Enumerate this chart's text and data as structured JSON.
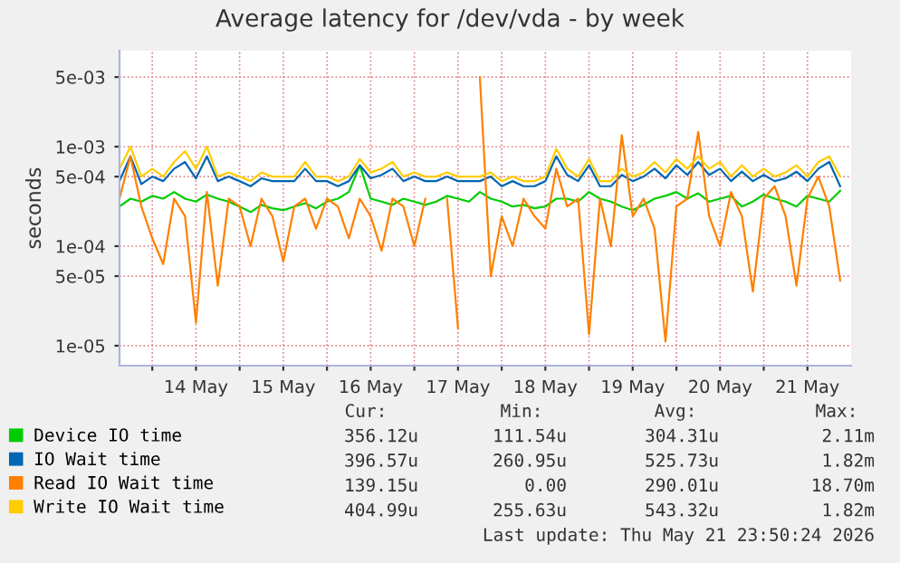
{
  "chart_data": {
    "type": "line",
    "title": "Average latency for /dev/vda - by week",
    "ylabel": "seconds",
    "log": "y",
    "grid": true,
    "legend": "bottom left",
    "marker": "none",
    "line_style": "solid",
    "ylim": [
      6.3e-06,
      0.0092
    ],
    "yticks": [
      {
        "value": 0.005,
        "label": "5e-03"
      },
      {
        "value": 0.001,
        "label": "1e-03"
      },
      {
        "value": 0.0005,
        "label": "5e-04"
      },
      {
        "value": 0.0001,
        "label": "1e-04"
      },
      {
        "value": 5e-05,
        "label": "5e-05"
      },
      {
        "value": 1e-05,
        "label": "1e-05"
      }
    ],
    "xlim": [
      "2026-05-13T15:00",
      "2026-05-22T00:00"
    ],
    "xticks": [
      {
        "value": "2026-05-14T00:00",
        "label": null
      },
      {
        "value": "2026-05-14T12:00",
        "label": "14 May"
      },
      {
        "value": "2026-05-15T00:00",
        "label": null
      },
      {
        "value": "2026-05-15T12:00",
        "label": "15 May"
      },
      {
        "value": "2026-05-16T00:00",
        "label": null
      },
      {
        "value": "2026-05-16T12:00",
        "label": "16 May"
      },
      {
        "value": "2026-05-17T00:00",
        "label": null
      },
      {
        "value": "2026-05-17T12:00",
        "label": "17 May"
      },
      {
        "value": "2026-05-18T00:00",
        "label": null
      },
      {
        "value": "2026-05-18T12:00",
        "label": "18 May"
      },
      {
        "value": "2026-05-19T00:00",
        "label": null
      },
      {
        "value": "2026-05-19T12:00",
        "label": "19 May"
      },
      {
        "value": "2026-05-20T00:00",
        "label": null
      },
      {
        "value": "2026-05-20T12:00",
        "label": "20 May"
      },
      {
        "value": "2026-05-21T00:00",
        "label": null
      },
      {
        "value": "2026-05-21T12:00",
        "label": "21 May"
      }
    ],
    "x": [
      "2026-05-13T15:00",
      "2026-05-13T18:00",
      "2026-05-13T21:00",
      "2026-05-14T00:00",
      "2026-05-14T03:00",
      "2026-05-14T06:00",
      "2026-05-14T09:00",
      "2026-05-14T12:00",
      "2026-05-14T15:00",
      "2026-05-14T18:00",
      "2026-05-14T21:00",
      "2026-05-15T00:00",
      "2026-05-15T03:00",
      "2026-05-15T06:00",
      "2026-05-15T09:00",
      "2026-05-15T12:00",
      "2026-05-15T15:00",
      "2026-05-15T18:00",
      "2026-05-15T21:00",
      "2026-05-16T00:00",
      "2026-05-16T03:00",
      "2026-05-16T06:00",
      "2026-05-16T09:00",
      "2026-05-16T12:00",
      "2026-05-16T15:00",
      "2026-05-16T18:00",
      "2026-05-16T21:00",
      "2026-05-17T00:00",
      "2026-05-17T03:00",
      "2026-05-17T06:00",
      "2026-05-17T09:00",
      "2026-05-17T12:00",
      "2026-05-17T15:00",
      "2026-05-17T18:00",
      "2026-05-17T21:00",
      "2026-05-18T00:00",
      "2026-05-18T03:00",
      "2026-05-18T06:00",
      "2026-05-18T09:00",
      "2026-05-18T12:00",
      "2026-05-18T15:00",
      "2026-05-18T18:00",
      "2026-05-18T21:00",
      "2026-05-19T00:00",
      "2026-05-19T03:00",
      "2026-05-19T06:00",
      "2026-05-19T09:00",
      "2026-05-19T12:00",
      "2026-05-19T15:00",
      "2026-05-19T18:00",
      "2026-05-19T21:00",
      "2026-05-20T00:00",
      "2026-05-20T03:00",
      "2026-05-20T06:00",
      "2026-05-20T09:00",
      "2026-05-20T12:00",
      "2026-05-20T15:00",
      "2026-05-20T18:00",
      "2026-05-20T21:00",
      "2026-05-21T00:00",
      "2026-05-21T03:00",
      "2026-05-21T06:00",
      "2026-05-21T09:00",
      "2026-05-21T12:00",
      "2026-05-21T15:00",
      "2026-05-21T18:00",
      "2026-05-21T21:00"
    ],
    "series": [
      {
        "name": "Device IO time",
        "color": "#00cc00",
        "values": [
          0.00025,
          0.0003,
          0.00028,
          0.00032,
          0.0003,
          0.00035,
          0.0003,
          0.00028,
          0.00033,
          0.0003,
          0.00028,
          0.00025,
          0.00022,
          0.00026,
          0.00024,
          0.00023,
          0.00025,
          0.00027,
          0.00024,
          0.00028,
          0.0003,
          0.00035,
          0.00065,
          0.0003,
          0.00028,
          0.00026,
          0.0003,
          0.00028,
          0.00026,
          0.00028,
          0.00032,
          0.0003,
          0.00028,
          0.00035,
          0.0003,
          0.00028,
          0.00025,
          0.00026,
          0.00024,
          0.00025,
          0.0003,
          0.0003,
          0.00028,
          0.00035,
          0.0003,
          0.00028,
          0.00025,
          0.00023,
          0.00026,
          0.0003,
          0.00032,
          0.00035,
          0.0003,
          0.00034,
          0.00028,
          0.0003,
          0.00032,
          0.00025,
          0.00028,
          0.00033,
          0.0003,
          0.00028,
          0.00025,
          0.00032,
          0.0003,
          0.00028,
          0.00036
        ]
      },
      {
        "name": "IO Wait time",
        "color": "#0066b3",
        "values": [
          0.00045,
          0.0008,
          0.00042,
          0.0005,
          0.00045,
          0.0006,
          0.0007,
          0.00048,
          0.0008,
          0.00045,
          0.0005,
          0.00045,
          0.0004,
          0.00048,
          0.00045,
          0.00045,
          0.00045,
          0.0006,
          0.00045,
          0.00045,
          0.0004,
          0.00045,
          0.00065,
          0.00048,
          0.00052,
          0.0006,
          0.00045,
          0.0005,
          0.00045,
          0.00045,
          0.0005,
          0.00045,
          0.00045,
          0.00045,
          0.0005,
          0.0004,
          0.00045,
          0.0004,
          0.0004,
          0.00045,
          0.0008,
          0.00052,
          0.00045,
          0.00065,
          0.0004,
          0.0004,
          0.00052,
          0.00045,
          0.0005,
          0.0006,
          0.00048,
          0.00065,
          0.00052,
          0.0007,
          0.00052,
          0.0006,
          0.00045,
          0.00056,
          0.00045,
          0.00052,
          0.00045,
          0.00048,
          0.00056,
          0.00045,
          0.0006,
          0.0007,
          0.0004
        ]
      },
      {
        "name": "Read IO Wait time",
        "color": "#ff8000",
        "values": [
          0.0003,
          0.0008,
          0.00025,
          0.00012,
          6.6e-05,
          0.0003,
          0.0002,
          1.7e-05,
          0.00035,
          4e-05,
          0.0003,
          0.00025,
          0.0001,
          0.0003,
          0.0002,
          7e-05,
          0.00025,
          0.0003,
          0.00015,
          0.0003,
          0.00025,
          0.00012,
          0.0003,
          0.0002,
          9e-05,
          0.0003,
          0.00025,
          0.0001,
          0.0003,
          null,
          0.0003,
          1.5e-05,
          null,
          0.005,
          5e-05,
          0.0002,
          0.0001,
          0.0003,
          0.0002,
          0.00015,
          0.0006,
          0.00025,
          0.0003,
          1.3e-05,
          0.0003,
          0.0001,
          0.0013,
          0.0002,
          0.0003,
          0.00015,
          1.1e-05,
          0.00025,
          0.0003,
          0.0014,
          0.0002,
          0.0001,
          0.00035,
          0.0002,
          3.5e-05,
          0.0003,
          0.0004,
          0.0002,
          4e-05,
          0.0003,
          0.0005,
          0.00025,
          4.5e-05
        ]
      },
      {
        "name": "Write IO Wait time",
        "color": "#ffcc00",
        "values": [
          0.0006,
          0.001,
          0.0005,
          0.0006,
          0.0005,
          0.0007,
          0.0009,
          0.0006,
          0.001,
          0.0005,
          0.00055,
          0.0005,
          0.00045,
          0.00055,
          0.0005,
          0.0005,
          0.0005,
          0.0007,
          0.0005,
          0.0005,
          0.00045,
          0.0005,
          0.00075,
          0.00055,
          0.0006,
          0.0007,
          0.0005,
          0.00055,
          0.0005,
          0.0005,
          0.00055,
          0.0005,
          0.0005,
          0.0005,
          0.00055,
          0.00045,
          0.0005,
          0.00045,
          0.00045,
          0.0005,
          0.00095,
          0.0006,
          0.0005,
          0.00075,
          0.00045,
          0.00045,
          0.0006,
          0.0005,
          0.00055,
          0.0007,
          0.00055,
          0.00075,
          0.0006,
          0.0008,
          0.0006,
          0.0007,
          0.0005,
          0.00065,
          0.0005,
          0.0006,
          0.0005,
          0.00055,
          0.00065,
          0.0005,
          0.0007,
          0.0008,
          0.0005
        ]
      }
    ],
    "annotations": [
      "Cur:",
      "Min:",
      "Avg:",
      "Max:",
      "356.12u",
      "111.54u",
      "304.31u",
      "2.11m",
      "396.57u",
      "260.95u",
      "525.73u",
      "1.82m",
      "139.15u",
      "0.00",
      "290.01u",
      "18.70m",
      "404.99u",
      "255.63u",
      "543.32u",
      "1.82m",
      "Last update: Thu May 21 23:50:24 2026"
    ]
  }
}
